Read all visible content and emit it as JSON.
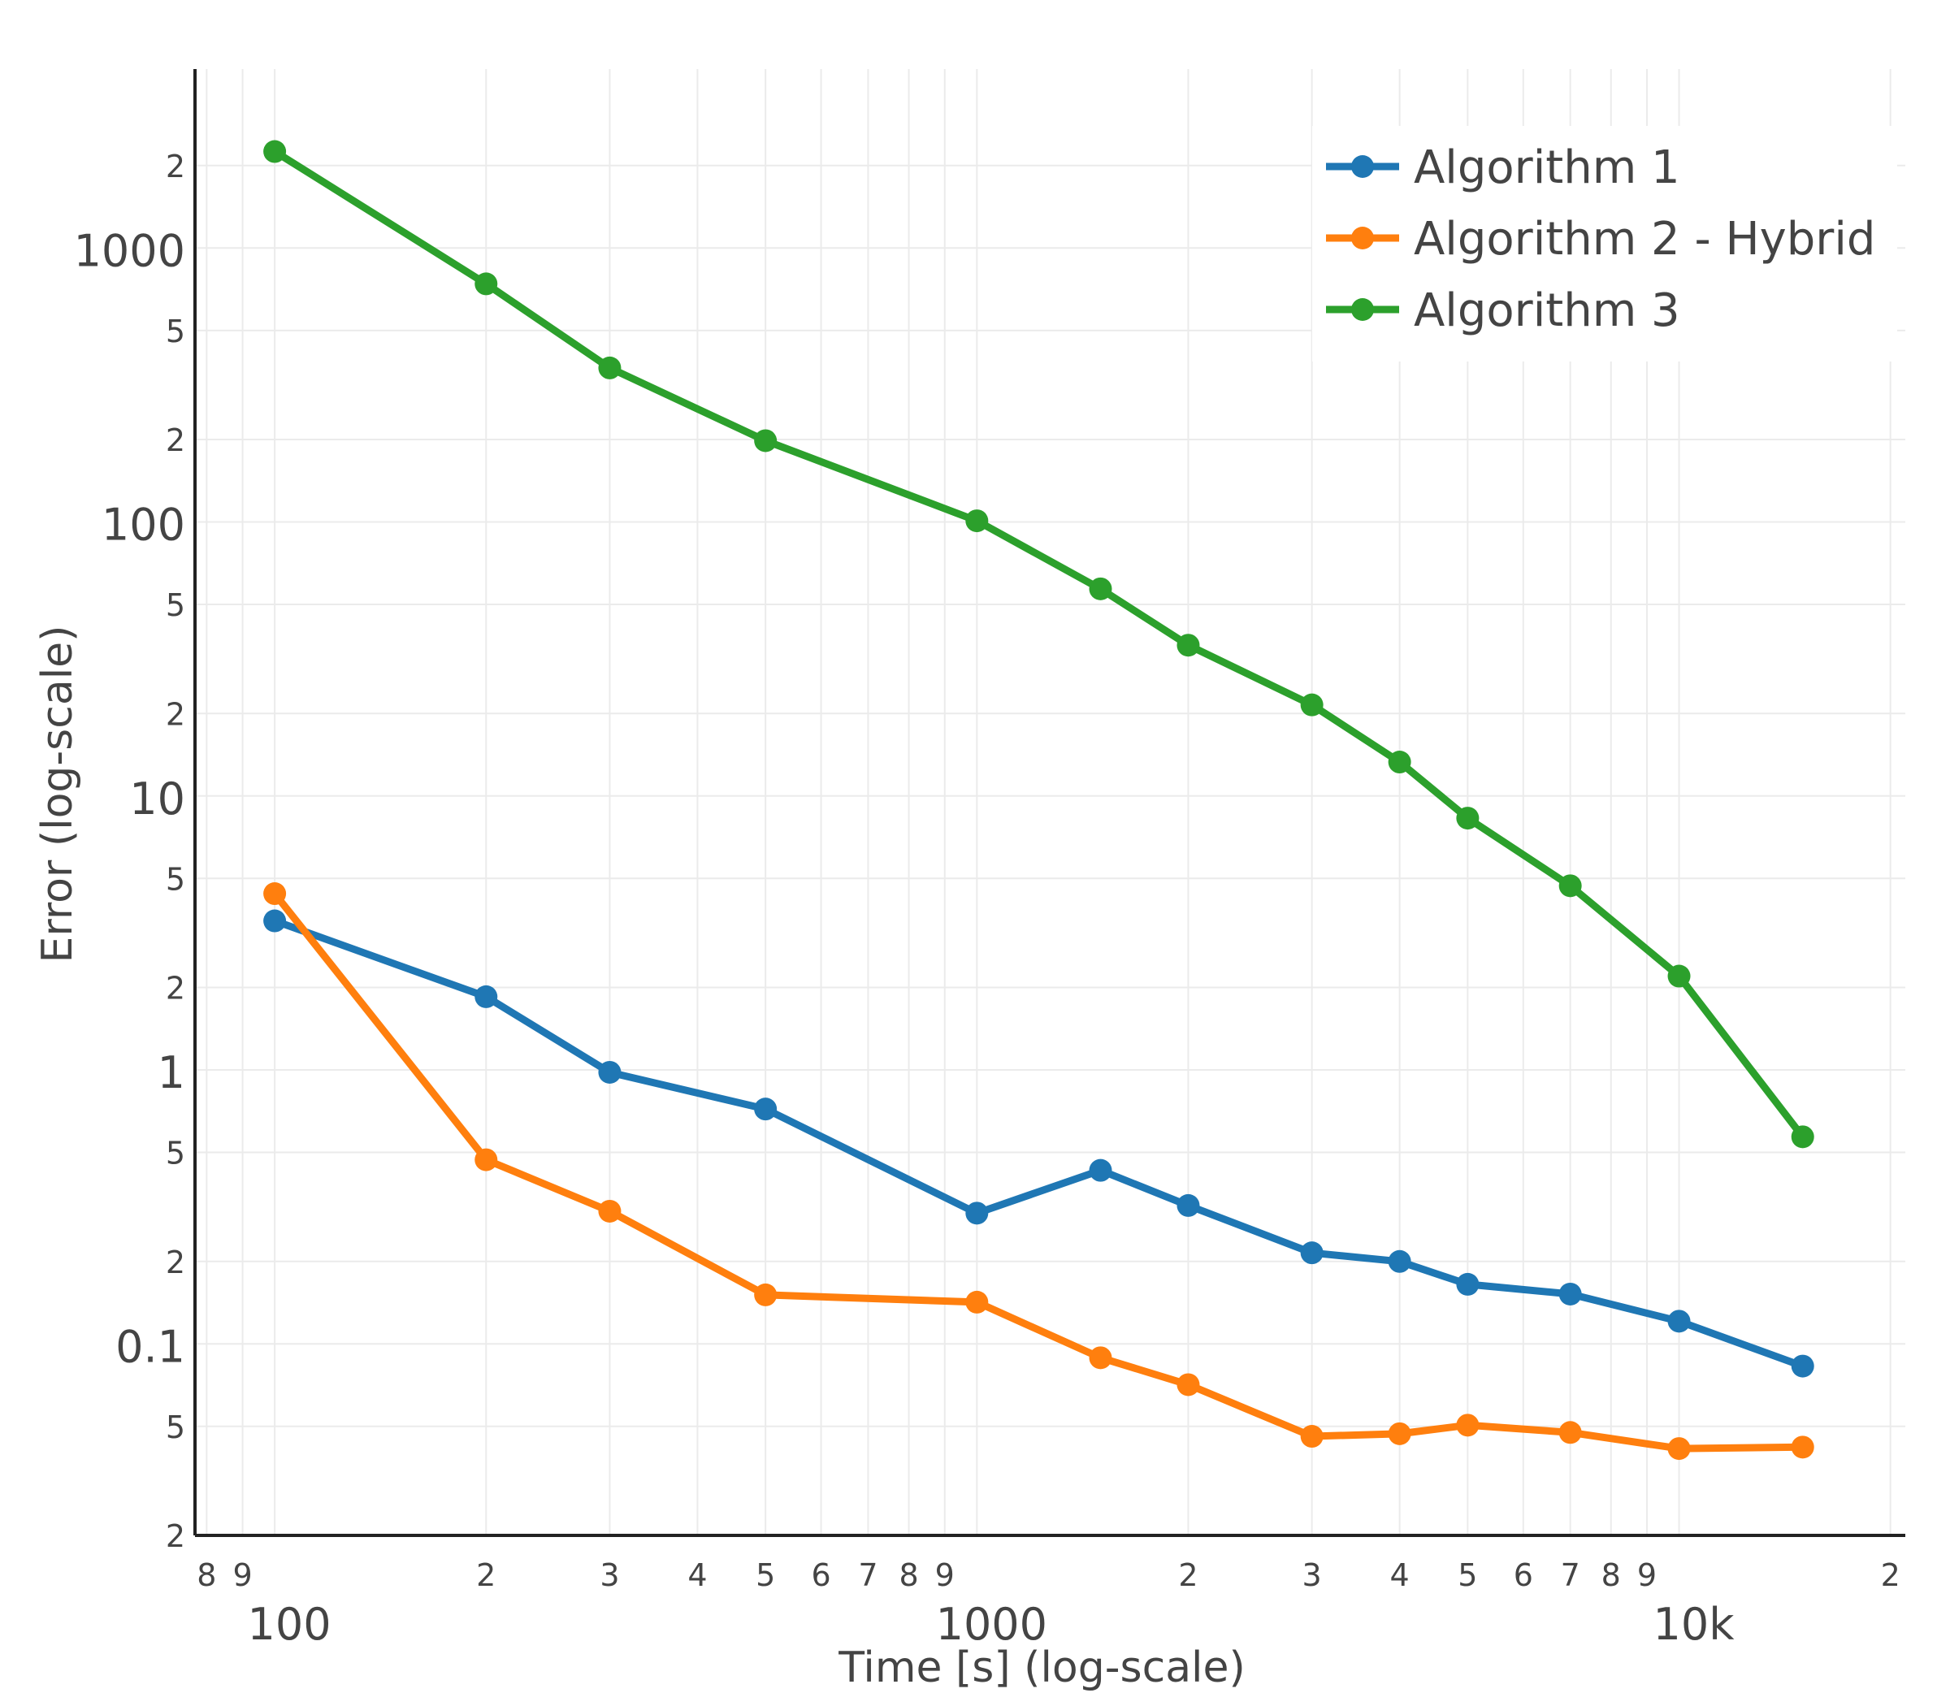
{
  "chart_data": {
    "type": "line",
    "xlabel": "Time [s] (log-scale)",
    "ylabel": "Error (log-scale)",
    "x_scale": "log",
    "y_scale": "log",
    "xlim": [
      77,
      21000
    ],
    "ylim": [
      0.02,
      4500
    ],
    "grid": true,
    "legend_position": "top-right",
    "x_major_ticks": [
      {
        "value": 100,
        "label": "100"
      },
      {
        "value": 1000,
        "label": "1000"
      },
      {
        "value": 10000,
        "label": "10k"
      }
    ],
    "x_minor_ticks": [
      {
        "value": 80,
        "label": "8"
      },
      {
        "value": 90,
        "label": "9"
      },
      {
        "value": 200,
        "label": "2"
      },
      {
        "value": 300,
        "label": "3"
      },
      {
        "value": 400,
        "label": "4"
      },
      {
        "value": 500,
        "label": "5"
      },
      {
        "value": 600,
        "label": "6"
      },
      {
        "value": 700,
        "label": "7"
      },
      {
        "value": 800,
        "label": "8"
      },
      {
        "value": 900,
        "label": "9"
      },
      {
        "value": 2000,
        "label": "2"
      },
      {
        "value": 3000,
        "label": "3"
      },
      {
        "value": 4000,
        "label": "4"
      },
      {
        "value": 5000,
        "label": "5"
      },
      {
        "value": 6000,
        "label": "6"
      },
      {
        "value": 7000,
        "label": "7"
      },
      {
        "value": 8000,
        "label": "8"
      },
      {
        "value": 9000,
        "label": "9"
      },
      {
        "value": 20000,
        "label": "2"
      }
    ],
    "y_major_ticks": [
      {
        "value": 0.1,
        "label": "0.1"
      },
      {
        "value": 1,
        "label": "1"
      },
      {
        "value": 10,
        "label": "10"
      },
      {
        "value": 100,
        "label": "100"
      },
      {
        "value": 1000,
        "label": "1000"
      }
    ],
    "y_minor_ticks": [
      {
        "value": 0.02,
        "label": "2"
      },
      {
        "value": 0.05,
        "label": "5"
      },
      {
        "value": 0.2,
        "label": "2"
      },
      {
        "value": 0.5,
        "label": "5"
      },
      {
        "value": 2,
        "label": "2"
      },
      {
        "value": 5,
        "label": "5"
      },
      {
        "value": 20,
        "label": "2"
      },
      {
        "value": 50,
        "label": "5"
      },
      {
        "value": 200,
        "label": "2"
      },
      {
        "value": 500,
        "label": "5"
      },
      {
        "value": 2000,
        "label": "2"
      }
    ],
    "series": [
      {
        "name": "Algorithm 1",
        "color": "#1f77b4",
        "x": [
          100,
          200,
          300,
          500,
          1000,
          1500,
          2000,
          3000,
          4000,
          5000,
          7000,
          10000,
          15000
        ],
        "y": [
          3.5,
          1.85,
          0.98,
          0.72,
          0.3,
          0.43,
          0.32,
          0.215,
          0.2,
          0.165,
          0.152,
          0.121,
          0.083
        ]
      },
      {
        "name": "Algorithm 2 - Hybrid",
        "color": "#ff7f0e",
        "x": [
          100,
          200,
          300,
          500,
          1000,
          1500,
          2000,
          3000,
          4000,
          5000,
          7000,
          10000,
          15000
        ],
        "y": [
          4.4,
          0.47,
          0.305,
          0.151,
          0.142,
          0.089,
          0.071,
          0.046,
          0.047,
          0.0505,
          0.0475,
          0.0415,
          0.042
        ]
      },
      {
        "name": "Algorithm 3",
        "color": "#2ca02c",
        "x": [
          100,
          200,
          300,
          500,
          1000,
          1500,
          2000,
          3000,
          4000,
          5000,
          7000,
          10000,
          15000
        ],
        "y": [
          2250,
          740,
          365,
          198,
          101,
          57,
          35.5,
          21.5,
          13.3,
          8.3,
          4.7,
          2.2,
          0.57
        ]
      }
    ]
  }
}
